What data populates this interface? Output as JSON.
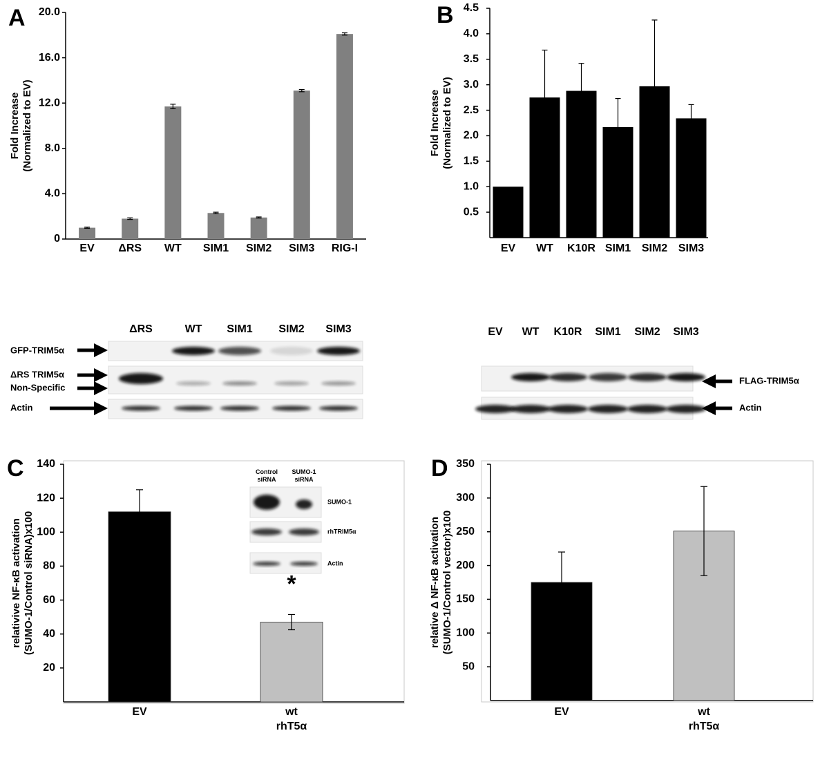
{
  "chart_data": [
    {
      "type": "bar",
      "panel": "A",
      "ylabel": [
        "Fold Increase",
        "(Normalized to EV)"
      ],
      "categories": [
        "EV",
        "ΔRS",
        "WT",
        "SIM1",
        "SIM2",
        "SIM3",
        "RIG-I"
      ],
      "values": [
        1.0,
        1.8,
        11.7,
        2.3,
        1.9,
        13.1,
        18.1
      ],
      "errors": [
        0.05,
        0.07,
        0.2,
        0.07,
        0.05,
        0.1,
        0.1
      ],
      "color": "#808080",
      "ylim": [
        0,
        20
      ],
      "yticks": [
        0,
        {
          "value": 4,
          "label": "4.0"
        },
        {
          "value": 8,
          "label": "8.0"
        },
        {
          "value": 12,
          "label": "12.0"
        },
        {
          "value": 16,
          "label": "16.0"
        },
        {
          "value": 20,
          "label": "20.0"
        }
      ]
    },
    {
      "type": "bar",
      "panel": "B",
      "ylabel": [
        "Fold Increase",
        "(Normalized to EV)"
      ],
      "categories": [
        "EV",
        "WT",
        "K10R",
        "SIM1",
        "SIM2",
        "SIM3"
      ],
      "values": [
        1.0,
        2.75,
        2.88,
        2.17,
        2.97,
        2.34
      ],
      "errors": [
        null,
        0.93,
        0.54,
        0.56,
        1.3,
        0.27
      ],
      "color": "#000000",
      "ylim": [
        0,
        4.5
      ],
      "yticks": [
        0.5,
        {
          "value": 1,
          "label": "1.0"
        },
        1.5,
        {
          "value": 2,
          "label": "2.0"
        },
        2.5,
        {
          "value": 3,
          "label": "3.0"
        },
        3.5,
        {
          "value": 4,
          "label": "4.0"
        },
        4.5
      ]
    },
    {
      "type": "bar",
      "panel": "C",
      "ylabel": [
        "relativive  NF-κB activation",
        "(SUMO-1/Control siRNA)x100"
      ],
      "categories": [
        "EV",
        "wt\nrhT5α"
      ],
      "values": [
        112,
        47
      ],
      "errors": [
        13,
        4.5
      ],
      "colors": [
        "#000000",
        "#c0c0c0"
      ],
      "annotations": [
        "*"
      ],
      "ylim": [
        0,
        140
      ],
      "yticks": [
        20,
        40,
        60,
        80,
        100,
        120,
        140
      ]
    },
    {
      "type": "bar",
      "panel": "D",
      "ylabel": [
        "relative Δ NF-κB activation",
        "(SUMO-1/Control vector)x100"
      ],
      "categories": [
        "EV",
        "wt\nrhT5α"
      ],
      "values": [
        175,
        251
      ],
      "errors": [
        45,
        66
      ],
      "colors": [
        "#000000",
        "#c0c0c0"
      ],
      "ylim": [
        0,
        350
      ],
      "yticks": [
        50,
        100,
        150,
        200,
        250,
        300,
        350
      ]
    }
  ],
  "blots": {
    "left": {
      "lanes": [
        "ΔRS",
        "WT",
        "SIM1",
        "SIM2",
        "SIM3"
      ],
      "rows": [
        "GFP-TRIM5α",
        "ΔRS TRIM5α",
        "Non-Specific",
        "Actin"
      ]
    },
    "right": {
      "lanes": [
        "EV",
        "WT",
        "K10R",
        "SIM1",
        "SIM2",
        "SIM3"
      ],
      "rows": [
        "FLAG-TRIM5α",
        "Actin"
      ]
    },
    "inset": {
      "lanes": [
        "Control\nsiRNA",
        "SUMO-1\nsiRNA"
      ],
      "rows": [
        "SUMO-1",
        "rhTRIM5α",
        "Actin"
      ]
    }
  }
}
